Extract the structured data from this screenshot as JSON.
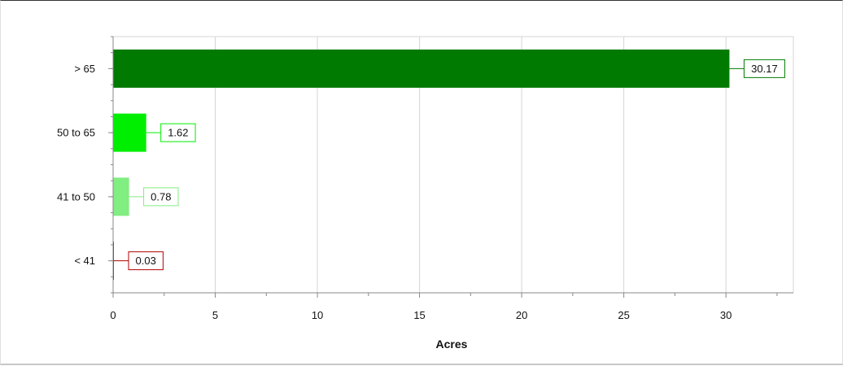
{
  "chart_data": {
    "type": "bar",
    "orientation": "horizontal",
    "categories": [
      "> 65",
      "50 to 65",
      "41 to 50",
      "< 41"
    ],
    "values": [
      30.17,
      1.62,
      0.78,
      0.03
    ],
    "value_labels": [
      "30.17",
      "1.62",
      "0.78",
      "0.03"
    ],
    "colors": [
      "#007a00",
      "#00ee00",
      "#80ee80",
      "#b00000"
    ],
    "title": "",
    "xlabel": "Acres",
    "ylabel": "",
    "xlim": [
      0,
      33.3
    ],
    "xticks": [
      0,
      5,
      10,
      15,
      20,
      25,
      30
    ],
    "xtick_labels": [
      "0",
      "5",
      "10",
      "15",
      "20",
      "25",
      "30"
    ],
    "grid": "vertical",
    "legend": "none"
  }
}
